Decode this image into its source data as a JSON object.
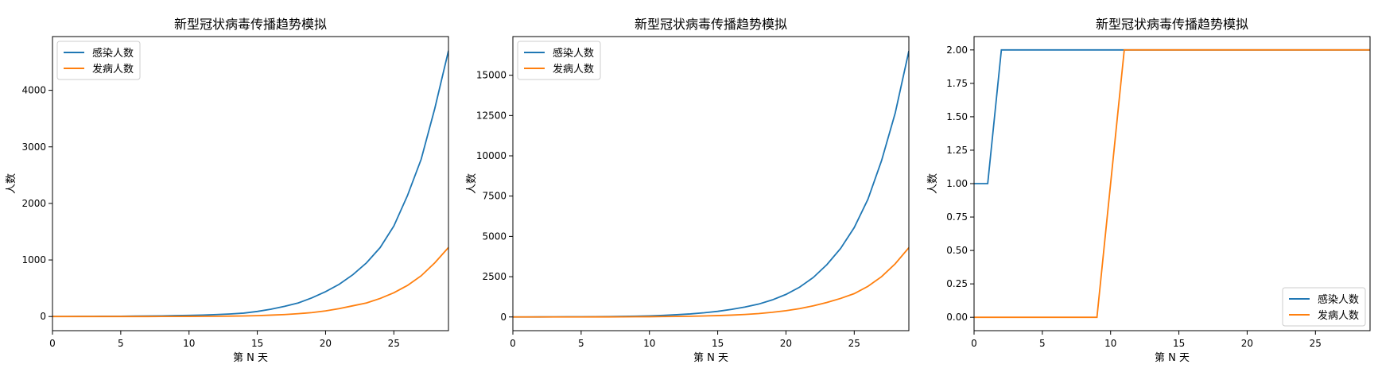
{
  "colors": {
    "infected": "#1f77b4",
    "sick": "#ff7f0e",
    "axes": "#000000",
    "background": "#ffffff"
  },
  "chart_data": [
    {
      "type": "line",
      "title": "新型冠状病毒传播趋势模拟",
      "xlabel": "第 N 天",
      "ylabel": "人数",
      "xlim": [
        0,
        29
      ],
      "ylim": [
        -250,
        4950
      ],
      "xticks": [
        "0",
        "5",
        "10",
        "15",
        "20",
        "25"
      ],
      "yticks": [
        "0",
        "1000",
        "2000",
        "3000",
        "4000"
      ],
      "grid": false,
      "legend_position": "top-left",
      "x": [
        0,
        1,
        2,
        3,
        4,
        5,
        6,
        7,
        8,
        9,
        10,
        11,
        12,
        13,
        14,
        15,
        16,
        17,
        18,
        19,
        20,
        21,
        22,
        23,
        24,
        25,
        26,
        27,
        28,
        29
      ],
      "series": [
        {
          "name": "感染人数",
          "color": "#1f77b4",
          "values": [
            1,
            1,
            2,
            3,
            4,
            5,
            7,
            9,
            12,
            16,
            20,
            26,
            35,
            45,
            60,
            90,
            130,
            180,
            240,
            330,
            440,
            570,
            740,
            950,
            1220,
            1600,
            2140,
            2780,
            3680,
            4700
          ]
        },
        {
          "name": "发病人数",
          "color": "#ff7f0e",
          "values": [
            0,
            0,
            0,
            0,
            0,
            0,
            0,
            0,
            1,
            1,
            2,
            3,
            5,
            7,
            10,
            15,
            25,
            35,
            50,
            70,
            100,
            140,
            190,
            240,
            320,
            420,
            550,
            720,
            950,
            1220
          ]
        }
      ]
    },
    {
      "type": "line",
      "title": "新型冠状病毒传播趋势模拟",
      "xlabel": "第 N 天",
      "ylabel": "人数",
      "xlim": [
        0,
        29
      ],
      "ylim": [
        -850,
        17400
      ],
      "xticks": [
        "0",
        "5",
        "10",
        "15",
        "20",
        "25"
      ],
      "yticks": [
        "0",
        "2500",
        "5000",
        "7500",
        "10000",
        "12500",
        "15000"
      ],
      "grid": false,
      "legend_position": "top-left",
      "x": [
        0,
        1,
        2,
        3,
        4,
        5,
        6,
        7,
        8,
        9,
        10,
        11,
        12,
        13,
        14,
        15,
        16,
        17,
        18,
        19,
        20,
        21,
        22,
        23,
        24,
        25,
        26,
        27,
        28,
        29
      ],
      "series": [
        {
          "name": "感染人数",
          "color": "#1f77b4",
          "values": [
            1,
            2,
            4,
            6,
            9,
            13,
            18,
            25,
            35,
            50,
            70,
            100,
            140,
            190,
            260,
            350,
            470,
            620,
            800,
            1060,
            1400,
            1850,
            2450,
            3250,
            4250,
            5550,
            7300,
            9700,
            12650,
            16500
          ]
        },
        {
          "name": "发病人数",
          "color": "#ff7f0e",
          "values": [
            0,
            0,
            0,
            0,
            1,
            2,
            3,
            5,
            8,
            12,
            17,
            24,
            33,
            45,
            62,
            85,
            115,
            155,
            210,
            290,
            390,
            520,
            690,
            900,
            1150,
            1450,
            1900,
            2500,
            3300,
            4300
          ]
        }
      ]
    },
    {
      "type": "line",
      "title": "新型冠状病毒传播趋势模拟",
      "xlabel": "第 N 天",
      "ylabel": "人数",
      "xlim": [
        0,
        29
      ],
      "ylim": [
        -0.1,
        2.1
      ],
      "xticks": [
        "0",
        "5",
        "10",
        "15",
        "20",
        "25"
      ],
      "yticks": [
        "0.00",
        "0.25",
        "0.50",
        "0.75",
        "1.00",
        "1.25",
        "1.50",
        "1.75",
        "2.00"
      ],
      "grid": false,
      "legend_position": "bottom-right",
      "x": [
        0,
        1,
        2,
        3,
        4,
        5,
        6,
        7,
        8,
        9,
        10,
        11,
        12,
        13,
        14,
        15,
        16,
        17,
        18,
        19,
        20,
        21,
        22,
        23,
        24,
        25,
        26,
        27,
        28,
        29
      ],
      "series": [
        {
          "name": "感染人数",
          "color": "#1f77b4",
          "values": [
            1,
            1,
            2,
            2,
            2,
            2,
            2,
            2,
            2,
            2,
            2,
            2,
            2,
            2,
            2,
            2,
            2,
            2,
            2,
            2,
            2,
            2,
            2,
            2,
            2,
            2,
            2,
            2,
            2,
            2
          ]
        },
        {
          "name": "发病人数",
          "color": "#ff7f0e",
          "values": [
            0,
            0,
            0,
            0,
            0,
            0,
            0,
            0,
            0,
            0,
            1,
            2,
            2,
            2,
            2,
            2,
            2,
            2,
            2,
            2,
            2,
            2,
            2,
            2,
            2,
            2,
            2,
            2,
            2,
            2
          ]
        }
      ]
    }
  ]
}
